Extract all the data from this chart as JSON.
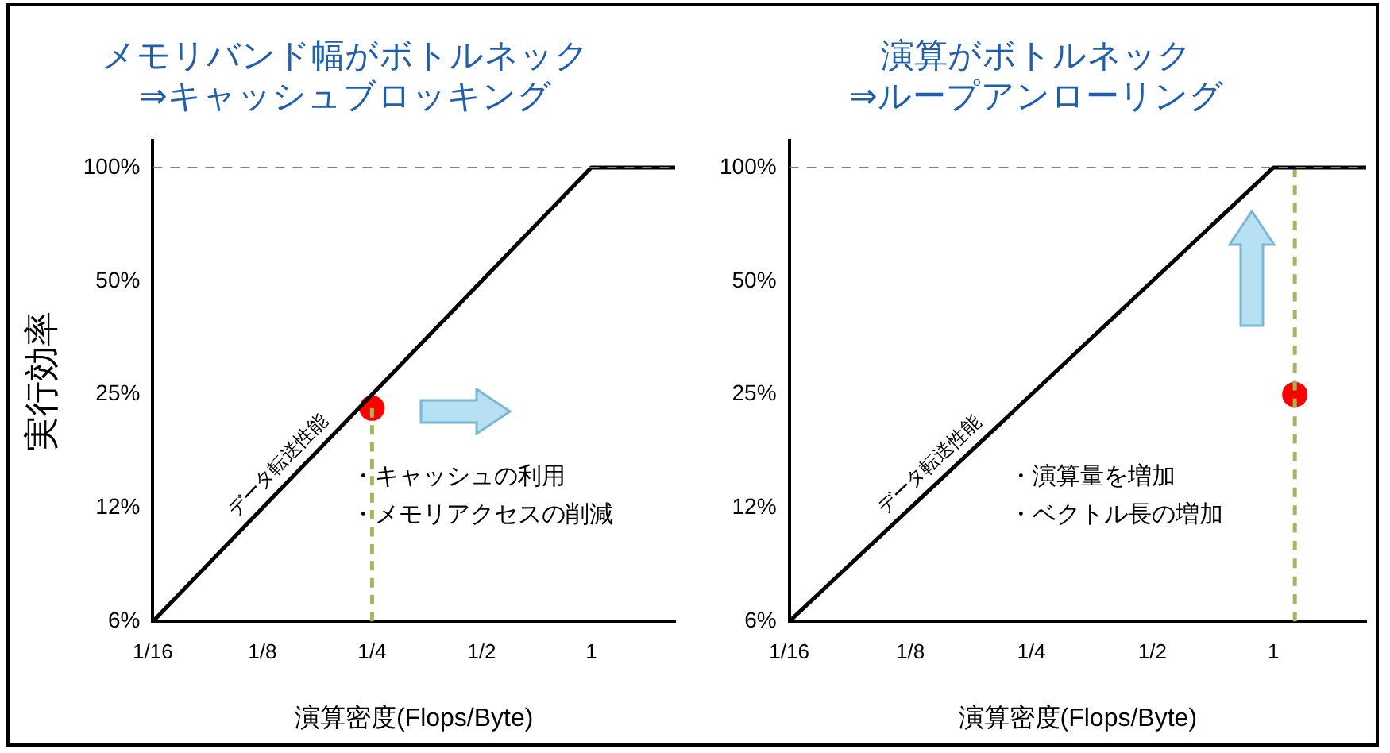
{
  "chart_data": [
    {
      "type": "line",
      "title": "メモリバンド幅がボトルネック\n⇒キャッシュブロッキング",
      "xlabel": "演算密度(Flops/Byte)",
      "ylabel": "実行効率",
      "log": "xy",
      "xlim": [
        0.0625,
        1.7
      ],
      "ylim": [
        6.25,
        118
      ],
      "xticks": [
        {
          "value": 0.0625,
          "label": "1/16"
        },
        {
          "value": 0.125,
          "label": "1/8"
        },
        {
          "value": 0.25,
          "label": "1/4"
        },
        {
          "value": 0.5,
          "label": "1/2"
        },
        1
      ],
      "yticks": [
        {
          "value": 6.25,
          "label": "6%"
        },
        {
          "value": 12.5,
          "label": "12%"
        },
        {
          "value": 25,
          "label": "25%"
        },
        {
          "value": 50,
          "label": "50%"
        },
        {
          "value": 100,
          "label": "100%"
        }
      ],
      "series": [
        {
          "type": "line",
          "color": "#000000",
          "x": [
            0.0625,
            1,
            1.7
          ],
          "values": [
            6.25,
            100,
            100
          ]
        },
        {
          "type": "line",
          "color": "#9bbb59",
          "line_style": "dashed",
          "x": [
            0.25,
            0.25
          ],
          "values": [
            6.25,
            23
          ]
        },
        {
          "type": "scatter",
          "color": "#ff0000",
          "marker": "circle",
          "x": [
            0.25
          ],
          "values": [
            23
          ]
        }
      ],
      "ref_lines": [
        {
          "axis": "y",
          "value": 100,
          "color": "#808080",
          "line_style": "dashed"
        }
      ],
      "annotations": [
        {
          "text": "データ転送性能",
          "x": 0.15,
          "y": 15
        },
        "・キャッシュの利用",
        "・メモリアクセスの削減"
      ]
    },
    {
      "type": "line",
      "title": "演算がボトルネック\n⇒ループアンローリング",
      "xlabel": "演算密度(Flops/Byte)",
      "log": "xy",
      "xlim": [
        0.0625,
        1.7
      ],
      "ylim": [
        6.25,
        118
      ],
      "xticks": [
        {
          "value": 0.0625,
          "label": "1/16"
        },
        {
          "value": 0.125,
          "label": "1/8"
        },
        {
          "value": 0.25,
          "label": "1/4"
        },
        {
          "value": 0.5,
          "label": "1/2"
        },
        1
      ],
      "yticks": [
        {
          "value": 6.25,
          "label": "6%"
        },
        {
          "value": 12.5,
          "label": "12%"
        },
        {
          "value": 25,
          "label": "25%"
        },
        {
          "value": 50,
          "label": "50%"
        },
        {
          "value": 100,
          "label": "100%"
        }
      ],
      "series": [
        {
          "type": "line",
          "color": "#000000",
          "x": [
            0.0625,
            1,
            1.7
          ],
          "values": [
            6.25,
            100,
            100
          ]
        },
        {
          "type": "line",
          "color": "#9bbb59",
          "line_style": "dashed",
          "x": [
            1.13,
            1.13
          ],
          "values": [
            6.25,
            100
          ]
        },
        {
          "type": "scatter",
          "color": "#ff0000",
          "marker": "circle",
          "x": [
            1.13
          ],
          "values": [
            25
          ]
        }
      ],
      "ref_lines": [
        {
          "axis": "y",
          "value": 100,
          "color": "#808080",
          "line_style": "dashed"
        }
      ],
      "annotations": [
        {
          "text": "データ転送性能",
          "x": 0.15,
          "y": 15
        },
        "・演算量を増加",
        "・ベクトル長の増加"
      ]
    }
  ]
}
